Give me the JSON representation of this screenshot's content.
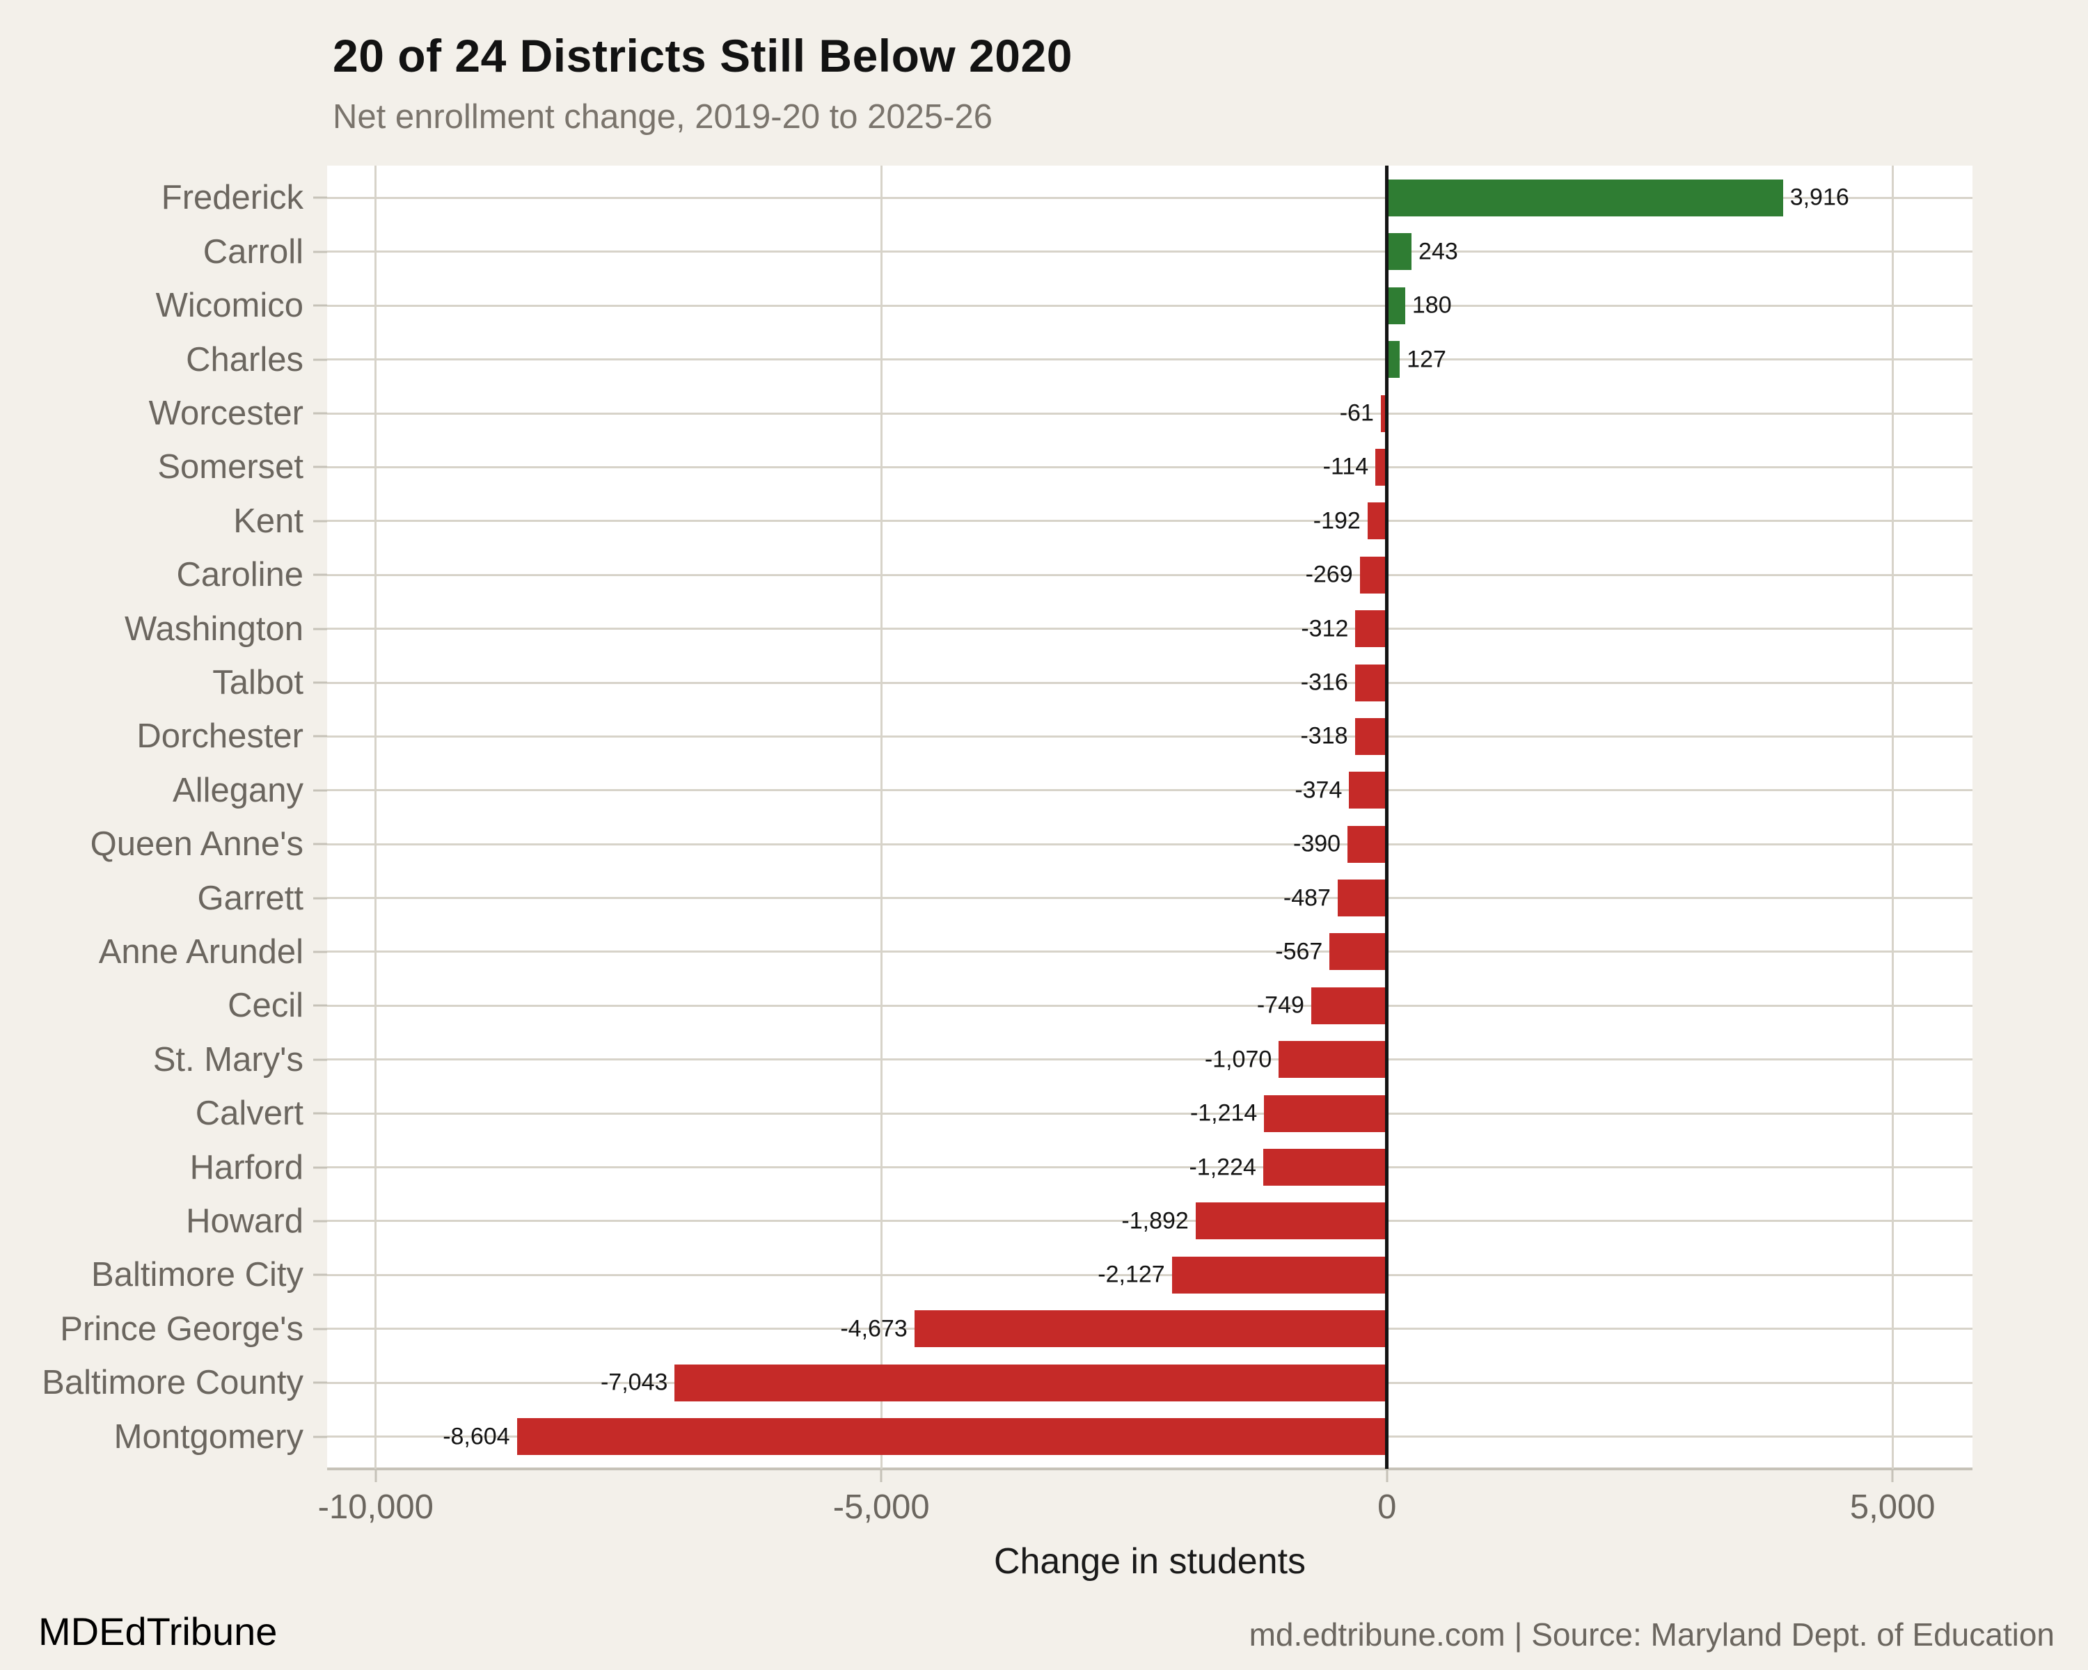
{
  "page": {
    "title": "20 of 24 Districts Still Below 2020",
    "subtitle": "Net enrollment change, 2019-20 to 2025-26",
    "footer_left": "MDEdTribune",
    "footer_right": "md.edtribune.com | Source: Maryland Dept. of Education"
  },
  "colors": {
    "background": "#f3f0ea",
    "panel": "#ffffff",
    "positive": "#2f7d33",
    "negative": "#c52a28",
    "gridline": "#d7d3c9",
    "axis_line": "#c6c2b8",
    "zero_line": "#141414",
    "label_text": "#6b665f",
    "value_text": "#141414",
    "title_text": "#121212",
    "subtitle_text": "#7a746c"
  },
  "chart_data": {
    "type": "bar",
    "orientation": "horizontal",
    "title": "20 of 24 Districts Still Below 2020",
    "subtitle": "Net enrollment change, 2019-20 to 2025-26",
    "xlabel": "Change in students",
    "ylabel": "",
    "grid": "both",
    "legend": "none",
    "xlim": [
      -10480,
      5790
    ],
    "x_ticks": [
      {
        "value": -10000,
        "label": "-10,000"
      },
      {
        "value": -5000,
        "label": "-5,000"
      },
      {
        "value": 0,
        "label": "0"
      },
      {
        "value": 5000,
        "label": "5,000"
      }
    ],
    "categories": [
      "Frederick",
      "Carroll",
      "Wicomico",
      "Charles",
      "Worcester",
      "Somerset",
      "Kent",
      "Caroline",
      "Washington",
      "Talbot",
      "Dorchester",
      "Allegany",
      "Queen Anne's",
      "Garrett",
      "Anne Arundel",
      "Cecil",
      "St. Mary's",
      "Calvert",
      "Harford",
      "Howard",
      "Baltimore City",
      "Prince George's",
      "Baltimore County",
      "Montgomery"
    ],
    "values": [
      3916,
      243,
      180,
      127,
      -61,
      -114,
      -192,
      -269,
      -312,
      -316,
      -318,
      -374,
      -390,
      -487,
      -567,
      -749,
      -1070,
      -1214,
      -1224,
      -1892,
      -2127,
      -4673,
      -7043,
      -8604
    ],
    "value_labels": [
      "3,916",
      "243",
      "180",
      "127",
      "-61",
      "-114",
      "-192",
      "-269",
      "-312",
      "-316",
      "-318",
      "-374",
      "-390",
      "-487",
      "-567",
      "-749",
      "-1,070",
      "-1,214",
      "-1,224",
      "-1,892",
      "-2,127",
      "-4,673",
      "-7,043",
      "-8,604"
    ]
  }
}
